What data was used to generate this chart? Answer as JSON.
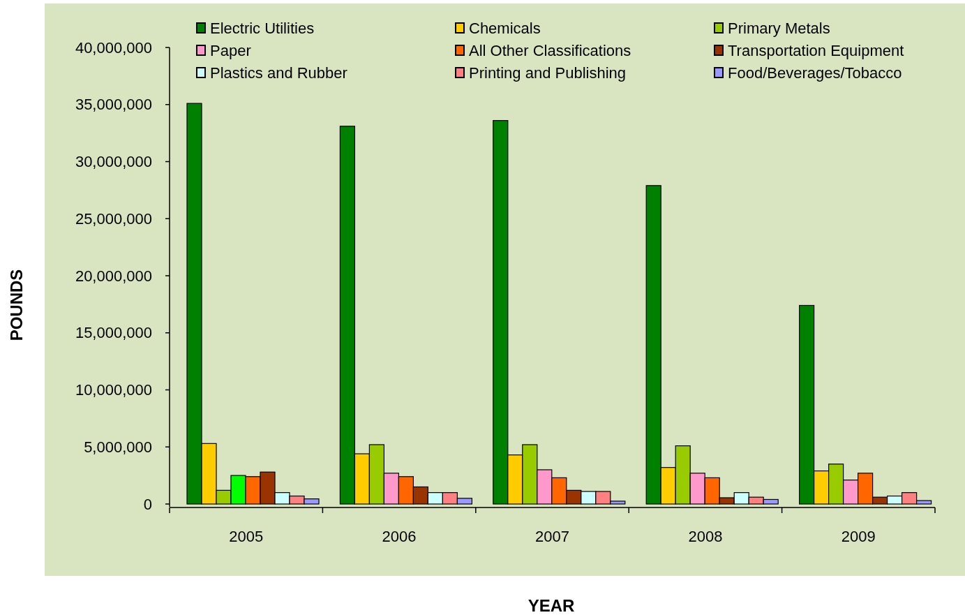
{
  "chart_data": {
    "type": "bar",
    "xlabel": "YEAR",
    "ylabel": "POUNDS",
    "categories": [
      "2005",
      "2006",
      "2007",
      "2008",
      "2009"
    ],
    "ylim": [
      0,
      40000000
    ],
    "yticks": [
      {
        "value": 0,
        "label": "0"
      },
      {
        "value": 5000000,
        "label": "5,000,000"
      },
      {
        "value": 10000000,
        "label": "10,000,000"
      },
      {
        "value": 15000000,
        "label": "15,000,000"
      },
      {
        "value": 20000000,
        "label": "20,000,000"
      },
      {
        "value": 25000000,
        "label": "25,000,000"
      },
      {
        "value": 30000000,
        "label": "30,000,000"
      },
      {
        "value": 35000000,
        "label": "35,000,000"
      },
      {
        "value": 40000000,
        "label": "40,000,000"
      }
    ],
    "legend": "top",
    "grid": false,
    "series": [
      {
        "name": "Electric Utilities",
        "color": "#008000",
        "values": [
          35100000,
          33100000,
          33600000,
          27900000,
          17400000
        ]
      },
      {
        "name": "Chemicals",
        "color": "#ffcc00",
        "values": [
          5300000,
          4400000,
          4300000,
          3200000,
          2900000
        ]
      },
      {
        "name": "Primary Metals",
        "color": "#99cc00",
        "values": [
          1200000,
          5200000,
          5200000,
          5100000,
          3500000
        ]
      },
      {
        "name": "Paper",
        "color": "#ff99cc",
        "colors": [
          "#00ff00",
          "#ff99cc",
          "#ff99cc",
          "#ff99cc",
          "#ff99cc"
        ],
        "values": [
          2500000,
          2700000,
          3000000,
          2700000,
          2100000
        ]
      },
      {
        "name": "All Other Classifications",
        "color": "#ff6600",
        "values": [
          2400000,
          2400000,
          2300000,
          2300000,
          2700000
        ]
      },
      {
        "name": "Transportation  Equipment",
        "color": "#993300",
        "values": [
          2800000,
          1500000,
          1200000,
          550000,
          600000
        ]
      },
      {
        "name": "Plastics and Rubber",
        "color": "#ccffff",
        "values": [
          1000000,
          1000000,
          1100000,
          1000000,
          700000
        ]
      },
      {
        "name": "Printing and Publishing",
        "color": "#ff8080",
        "values": [
          700000,
          1000000,
          1100000,
          600000,
          1000000
        ]
      },
      {
        "name": "Food/Beverages/Tobacco",
        "color": "#9999ff",
        "values": [
          450000,
          500000,
          250000,
          400000,
          300000
        ]
      }
    ]
  }
}
